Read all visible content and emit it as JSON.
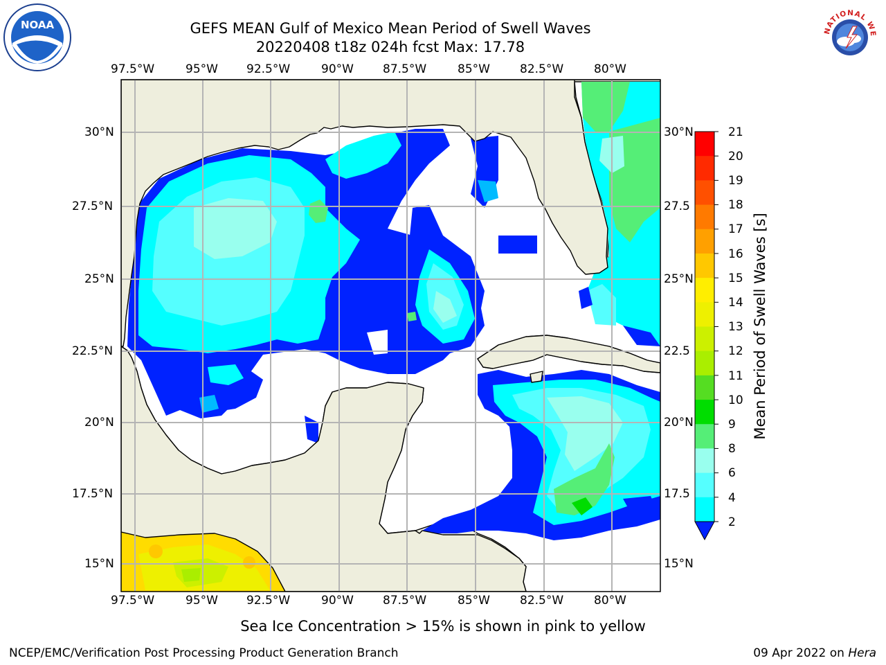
{
  "header": {
    "title": "GEFS MEAN Gulf of Mexico Mean Period of Swell Waves",
    "subtitle": "20220408 t18z 024h fcst   Max: 17.78"
  },
  "map": {
    "lon_labels_top": [
      "97.5°W",
      "95°W",
      "92.5°W",
      "90°W",
      "87.5°W",
      "85°W",
      "82.5°W",
      "80°W"
    ],
    "lon_labels_bottom": [
      "97.5°W",
      "95°W",
      "92.5°W",
      "90°W",
      "87.5°W",
      "85°W",
      "82.5°W",
      "80°W"
    ],
    "lat_labels_left": [
      "30°N",
      "27.5°N",
      "25°N",
      "22.5°N",
      "20°N",
      "17.5°N",
      "15°N"
    ],
    "lat_labels_right": [
      "30°N",
      "27.5",
      "25°N",
      "22.5",
      "20°N",
      "17.5",
      "15°N"
    ],
    "colors": {
      "land": "#eeeedd",
      "grid": "#b4b4b4",
      "ocean_low": "#ffffff"
    }
  },
  "colorbar": {
    "label": "Mean Period of Swell Waves [s]",
    "ticks": [
      "21",
      "20",
      "19",
      "18",
      "17",
      "16",
      "15",
      "14",
      "13",
      "12",
      "11",
      "10",
      "9",
      "8",
      "6",
      "4",
      "2"
    ],
    "colors": [
      "#ff0000",
      "#ff2a00",
      "#ff5000",
      "#ff7a00",
      "#ffa000",
      "#ffc800",
      "#ffee00",
      "#eef000",
      "#ccf000",
      "#aaee00",
      "#55dd22",
      "#00dd00",
      "#55ee77",
      "#99ffee",
      "#55ffff",
      "#00ffff",
      "#0088ff"
    ],
    "extend_color": "#0022ff"
  },
  "caption": "Sea Ice Concentration > 15% is shown in pink to yellow",
  "footer": {
    "left": "NCEP/EMC/Verification Post Processing Product Generation Branch",
    "right_date": "09 Apr 2022 on ",
    "right_host": "Hera"
  },
  "logos": {
    "left": "NOAA",
    "right_text": "NATIONAL WEATHER SERVICE"
  }
}
